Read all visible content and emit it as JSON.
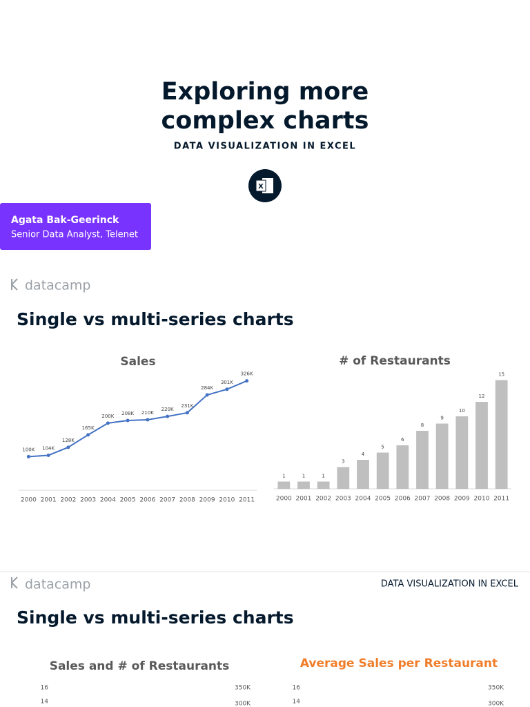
{
  "title_slide": {
    "title": [
      "Exploring more",
      "complex charts"
    ],
    "subtitle": "DATA VISUALIZATION IN EXCEL",
    "author": "Agata Bak-Geerinck",
    "role": "Senior Data Analyst, Telenet"
  },
  "slide2": {
    "logo": "datacamp",
    "heading": "Single vs multi-series charts"
  },
  "slide3": {
    "logo": "datacamp",
    "course": "DATA VISUALIZATION IN EXCEL",
    "heading": "Single vs multi-series charts"
  },
  "chart_data": [
    {
      "type": "line",
      "title": "Sales",
      "categories": [
        "2000",
        "2001",
        "2002",
        "2003",
        "2004",
        "2005",
        "2006",
        "2007",
        "2008",
        "2009",
        "2010",
        "2011"
      ],
      "values": [
        100,
        104,
        128,
        165,
        200,
        208,
        210,
        220,
        231,
        284,
        301,
        326
      ],
      "value_labels": [
        "100K",
        "104K",
        "128K",
        "165K",
        "200K",
        "208K",
        "210K",
        "220K",
        "231K",
        "284K",
        "301K",
        "326K"
      ],
      "color": "#4472c4",
      "ylim": [
        0,
        350
      ]
    },
    {
      "type": "bar",
      "title": "# of Restaurants",
      "categories": [
        "2000",
        "2001",
        "2002",
        "2003",
        "2004",
        "2005",
        "2006",
        "2007",
        "2008",
        "2009",
        "2010",
        "2011"
      ],
      "values": [
        1,
        1,
        1,
        3,
        4,
        5,
        6,
        8,
        9,
        10,
        12,
        15
      ],
      "color": "#bfbfbf",
      "ylim": [
        0,
        16
      ]
    },
    {
      "type": "combo",
      "title": "Sales and # of Restaurants",
      "color": "#595959",
      "ylim": [
        0,
        16
      ],
      "yticks": [
        14,
        16
      ],
      "y2lim": [
        0,
        350
      ],
      "y2ticks": [
        {
          "value": 300,
          "label": "300K"
        },
        {
          "value": 350,
          "label": "350K"
        }
      ],
      "y2color": "#4472c4"
    },
    {
      "type": "combo",
      "title": "Average Sales per Restaurant",
      "color": "#f07d2a",
      "ylim": [
        0,
        16
      ],
      "yticks": [
        14,
        16
      ],
      "y2lim": [
        0,
        350
      ],
      "y2ticks": [
        {
          "value": 300,
          "label": "300K"
        },
        {
          "value": 350,
          "label": "350K"
        }
      ],
      "y2color": "#a6a6a6"
    }
  ]
}
